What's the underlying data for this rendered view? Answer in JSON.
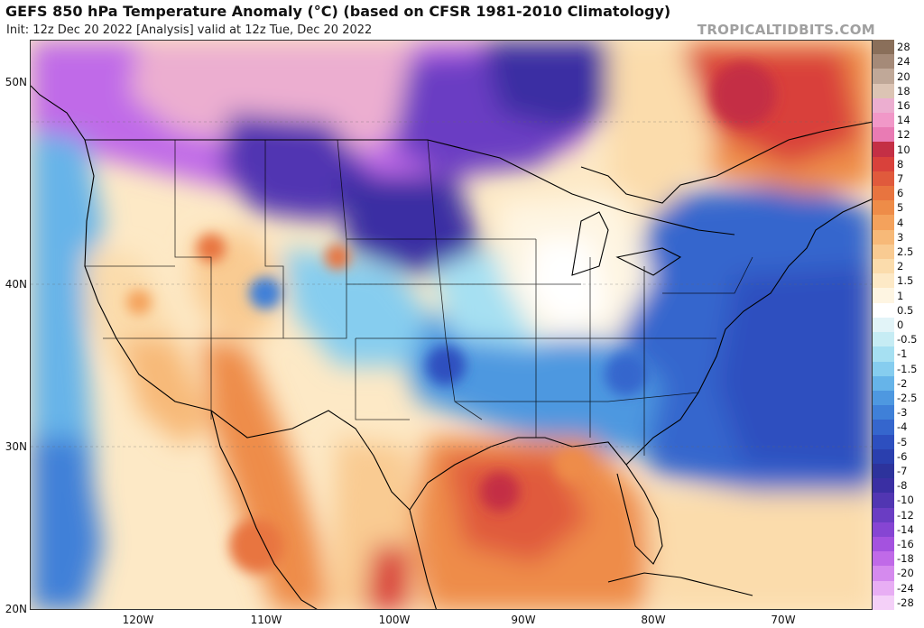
{
  "header": {
    "title": "GEFS 850 hPa Temperature Anomaly (°C) (based on CFSR 1981-2010 Climatology)",
    "subtitle": "Init: 12z Dec 20 2022   [Analysis]   valid at 12z Tue, Dec 20 2022",
    "brand": "TROPICALTIDBITS.COM"
  },
  "axes": {
    "lat_labels": [
      "50N",
      "40N",
      "30N",
      "20N"
    ],
    "lon_labels": [
      "120W",
      "110W",
      "100W",
      "90W",
      "80W",
      "70W"
    ]
  },
  "legend": {
    "labels": [
      "28",
      "24",
      "20",
      "18",
      "16",
      "14",
      "12",
      "10",
      "8",
      "7",
      "6",
      "5",
      "4",
      "3",
      "2.5",
      "2",
      "1.5",
      "1",
      "0.5",
      "0",
      "-0.5",
      "-1",
      "-1.5",
      "-2",
      "-2.5",
      "-3",
      "-4",
      "-5",
      "-6",
      "-7",
      "-8",
      "-10",
      "-12",
      "-14",
      "-16",
      "-18",
      "-20",
      "-24",
      "-28"
    ],
    "colors": [
      "#8a6f5a",
      "#a58a78",
      "#c0a898",
      "#dcc4b4",
      "#ecaed0",
      "#f198c8",
      "#e97bb4",
      "#c42f45",
      "#d9413b",
      "#e05a3c",
      "#e8743f",
      "#ee8c48",
      "#f4a25c",
      "#f7b978",
      "#f9cb92",
      "#fbdcac",
      "#fde9c6",
      "#fef5e2",
      "#ffffff",
      "#e2f4f8",
      "#c6ecf4",
      "#a6e0f2",
      "#86cdef",
      "#66b4e9",
      "#4e98e0",
      "#3f80d8",
      "#3566cd",
      "#2d4fbf",
      "#2a3fae",
      "#2d339c",
      "#3a2fa3",
      "#5136b2",
      "#6a3dc3",
      "#8645d3",
      "#a452df",
      "#c06ae8",
      "#d58aee",
      "#e8aef4",
      "#f4d0f8"
    ]
  }
}
